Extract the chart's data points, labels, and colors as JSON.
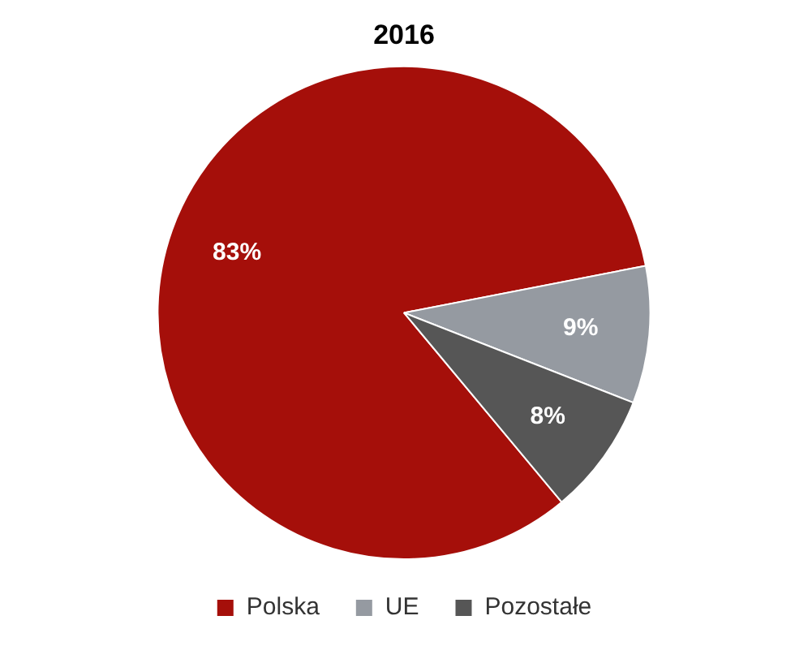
{
  "chart_data": {
    "type": "pie",
    "title": "2016",
    "categories": [
      "Polska",
      "UE",
      "Pozostałe"
    ],
    "values": [
      83,
      9,
      8
    ],
    "colors": [
      "#a50f0a",
      "#959aa1",
      "#565656"
    ],
    "value_labels": [
      "83%",
      "9%",
      "8%"
    ],
    "legend": "bottom"
  }
}
